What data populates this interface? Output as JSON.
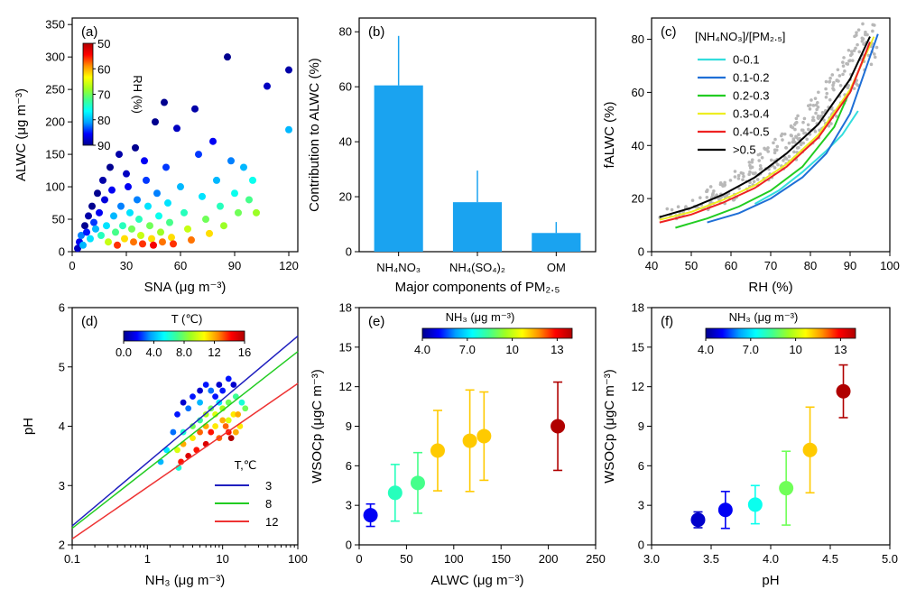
{
  "colors": {
    "bar": "#1aa3f0",
    "scatter_grey": "#b8b8b8",
    "ratio_lines": [
      "#33dddd",
      "#1f6fd6",
      "#22cc22",
      "#eeee22",
      "#ee2222",
      "#000000"
    ],
    "t_lines": [
      "#1f1fbf",
      "#22cc22",
      "#ee3333"
    ],
    "colormap": [
      "#00008f",
      "#0000ff",
      "#00a0ff",
      "#00ffff",
      "#40ff90",
      "#a0ff20",
      "#ffff00",
      "#ff9000",
      "#ff0000",
      "#b00000"
    ]
  },
  "chart_data": [
    {
      "panel": "(a)",
      "type": "scatter",
      "xlabel": "SNA (μg m⁻³)",
      "ylabel": "ALWC (μg m⁻³)",
      "xlim": [
        0,
        125
      ],
      "ylim": [
        0,
        360
      ],
      "xticks": [
        "0",
        "30",
        "60",
        "90",
        "120"
      ],
      "yticks": [
        "0",
        "50",
        "100",
        "150",
        "200",
        "250",
        "300",
        "350"
      ],
      "colorbar": {
        "title": "RH (%)",
        "ticks": [
          "50",
          "60",
          "70",
          "80",
          "90"
        ],
        "range": [
          50,
          90
        ],
        "reversed": true
      },
      "points": [
        [
          3,
          5,
          88
        ],
        [
          4,
          15,
          86
        ],
        [
          5,
          25,
          82
        ],
        [
          6,
          10,
          80
        ],
        [
          7,
          40,
          90
        ],
        [
          8,
          30,
          85
        ],
        [
          9,
          55,
          89
        ],
        [
          10,
          20,
          78
        ],
        [
          11,
          70,
          90
        ],
        [
          12,
          45,
          84
        ],
        [
          13,
          35,
          80
        ],
        [
          14,
          90,
          90
        ],
        [
          15,
          60,
          86
        ],
        [
          16,
          25,
          74
        ],
        [
          17,
          110,
          89
        ],
        [
          18,
          80,
          87
        ],
        [
          19,
          40,
          78
        ],
        [
          20,
          15,
          66
        ],
        [
          21,
          130,
          90
        ],
        [
          22,
          95,
          86
        ],
        [
          23,
          55,
          80
        ],
        [
          24,
          30,
          72
        ],
        [
          25,
          10,
          56
        ],
        [
          26,
          150,
          89
        ],
        [
          27,
          70,
          82
        ],
        [
          28,
          40,
          74
        ],
        [
          29,
          20,
          62
        ],
        [
          30,
          120,
          88
        ],
        [
          31,
          100,
          86
        ],
        [
          32,
          60,
          78
        ],
        [
          33,
          35,
          70
        ],
        [
          34,
          15,
          58
        ],
        [
          35,
          160,
          90
        ],
        [
          36,
          80,
          82
        ],
        [
          37,
          50,
          74
        ],
        [
          38,
          25,
          66
        ],
        [
          39,
          12,
          56
        ],
        [
          40,
          140,
          86
        ],
        [
          41,
          110,
          84
        ],
        [
          42,
          70,
          78
        ],
        [
          43,
          40,
          70
        ],
        [
          44,
          20,
          62
        ],
        [
          45,
          10,
          54
        ],
        [
          46,
          200,
          90
        ],
        [
          47,
          90,
          82
        ],
        [
          48,
          55,
          76
        ],
        [
          49,
          30,
          68
        ],
        [
          50,
          15,
          58
        ],
        [
          51,
          230,
          90
        ],
        [
          52,
          130,
          84
        ],
        [
          53,
          75,
          78
        ],
        [
          54,
          45,
          72
        ],
        [
          55,
          22,
          62
        ],
        [
          56,
          12,
          56
        ],
        [
          58,
          190,
          88
        ],
        [
          60,
          100,
          80
        ],
        [
          62,
          60,
          74
        ],
        [
          64,
          35,
          66
        ],
        [
          66,
          18,
          58
        ],
        [
          68,
          220,
          89
        ],
        [
          70,
          150,
          84
        ],
        [
          72,
          85,
          78
        ],
        [
          74,
          50,
          70
        ],
        [
          76,
          28,
          62
        ],
        [
          78,
          170,
          86
        ],
        [
          80,
          110,
          80
        ],
        [
          82,
          70,
          74
        ],
        [
          84,
          40,
          68
        ],
        [
          86,
          300,
          90
        ],
        [
          88,
          140,
          82
        ],
        [
          90,
          90,
          76
        ],
        [
          92,
          60,
          70
        ],
        [
          95,
          130,
          80
        ],
        [
          98,
          80,
          72
        ],
        [
          100,
          110,
          76
        ],
        [
          102,
          60,
          68
        ],
        [
          108,
          255,
          88
        ],
        [
          120,
          280,
          89
        ],
        [
          120,
          188,
          80
        ]
      ]
    },
    {
      "panel": "(b)",
      "type": "bar",
      "xlabel": "Major components of PM₂.₅",
      "ylabel": "Contribution to ALWC (%)",
      "categories": [
        "NH₄NO₃",
        "NH₄(SO₄)₂",
        "OM"
      ],
      "values": [
        60.5,
        18,
        6.8
      ],
      "errors": [
        18,
        11.5,
        4
      ],
      "ylim": [
        0,
        85
      ],
      "yticks": [
        "0",
        "20",
        "40",
        "60",
        "80"
      ]
    },
    {
      "panel": "(c)",
      "type": "line",
      "xlabel": "RH (%)",
      "ylabel": "fALWC (%)",
      "xlim": [
        40,
        100
      ],
      "ylim": [
        0,
        88
      ],
      "xticks": [
        "40",
        "50",
        "60",
        "70",
        "80",
        "90",
        "100"
      ],
      "yticks": [
        "0",
        "20",
        "40",
        "60",
        "80"
      ],
      "legend_title": "[NH₄NO₃]/[PM₂.₅]",
      "series": [
        {
          "name": "0-0.1",
          "x": [
            66,
            72,
            78,
            84,
            88,
            92
          ],
          "y": [
            18,
            23,
            30,
            38,
            44,
            53
          ]
        },
        {
          "name": "0.1-0.2",
          "x": [
            54,
            62,
            70,
            78,
            84,
            90,
            97
          ],
          "y": [
            11,
            14.5,
            20,
            28,
            37,
            52,
            82
          ]
        },
        {
          "name": "0.2-0.3",
          "x": [
            46,
            54,
            62,
            70,
            78,
            86,
            95
          ],
          "y": [
            9,
            12.5,
            17,
            23,
            32,
            47,
            78
          ]
        },
        {
          "name": "0.3-0.4",
          "x": [
            42,
            50,
            58,
            66,
            74,
            82,
            90,
            96
          ],
          "y": [
            12,
            15,
            19.5,
            25,
            33,
            44,
            61,
            81
          ]
        },
        {
          "name": "0.4-0.5",
          "x": [
            42,
            50,
            58,
            66,
            74,
            82,
            90,
            95
          ],
          "y": [
            11,
            14,
            18.5,
            24,
            32,
            43,
            60,
            79
          ]
        },
        {
          "name": ">0.5",
          "x": [
            42,
            50,
            58,
            66,
            74,
            82,
            90,
            95
          ],
          "y": [
            13,
            16.5,
            21.5,
            28,
            37,
            48,
            65,
            81
          ]
        }
      ]
    },
    {
      "panel": "(d)",
      "type": "scatter",
      "xlabel": "NH₃ (μg m⁻³)",
      "ylabel": "pH",
      "xscale": "log",
      "xlim": [
        0.1,
        100
      ],
      "ylim": [
        2,
        6
      ],
      "xticks": [
        "0.1",
        "1",
        "10",
        "100"
      ],
      "yticks": [
        "2",
        "3",
        "4",
        "5",
        "6"
      ],
      "colorbar": {
        "title": "T (℃)",
        "ticks": [
          "0.0",
          "4.0",
          "8.0",
          "12",
          "16"
        ],
        "range": [
          0,
          16
        ]
      },
      "legend_title": "T,℃",
      "lines": [
        {
          "name": "3",
          "x": [
            0.1,
            100
          ],
          "y": [
            2.32,
            5.52
          ]
        },
        {
          "name": "8",
          "x": [
            0.1,
            100
          ],
          "y": [
            2.28,
            5.26
          ]
        },
        {
          "name": "12",
          "x": [
            0.1,
            100
          ],
          "y": [
            2.1,
            4.72
          ]
        }
      ],
      "points": [
        [
          2.5,
          4.2,
          2
        ],
        [
          3,
          4.4,
          1
        ],
        [
          3.5,
          4.3,
          3
        ],
        [
          4,
          4.5,
          2
        ],
        [
          5,
          4.6,
          1
        ],
        [
          6,
          4.7,
          2
        ],
        [
          7,
          4.6,
          3
        ],
        [
          8,
          4.5,
          2
        ],
        [
          9,
          4.7,
          1
        ],
        [
          10,
          4.6,
          2
        ],
        [
          12,
          4.8,
          2
        ],
        [
          14,
          4.7,
          1
        ],
        [
          3,
          3.9,
          6
        ],
        [
          4,
          4.0,
          8
        ],
        [
          5,
          4.1,
          7
        ],
        [
          6,
          4.2,
          9
        ],
        [
          7,
          4.3,
          8
        ],
        [
          8,
          4.2,
          10
        ],
        [
          10,
          4.3,
          9
        ],
        [
          12,
          4.4,
          8
        ],
        [
          15,
          4.5,
          7
        ],
        [
          18,
          4.4,
          6
        ],
        [
          2.5,
          3.6,
          10
        ],
        [
          3,
          3.7,
          12
        ],
        [
          4,
          3.8,
          11
        ],
        [
          5,
          3.9,
          13
        ],
        [
          6,
          4.0,
          12
        ],
        [
          7,
          3.9,
          14
        ],
        [
          8,
          4.0,
          11
        ],
        [
          10,
          4.1,
          12
        ],
        [
          12,
          4.1,
          10
        ],
        [
          14,
          4.2,
          11
        ],
        [
          16,
          4.2,
          12
        ],
        [
          20,
          4.3,
          8
        ],
        [
          2.8,
          3.4,
          14
        ],
        [
          3.5,
          3.5,
          15
        ],
        [
          4.5,
          3.6,
          14
        ],
        [
          6,
          3.7,
          15
        ],
        [
          9,
          3.8,
          13
        ],
        [
          12,
          3.9,
          14
        ],
        [
          1.5,
          3.4,
          4
        ],
        [
          1.8,
          3.6,
          5
        ],
        [
          2.2,
          3.9,
          3
        ],
        [
          2.6,
          3.3,
          6
        ],
        [
          13,
          3.8,
          16
        ],
        [
          15,
          3.9,
          12
        ],
        [
          17,
          4.0,
          11
        ],
        [
          5,
          4.4,
          4
        ],
        [
          9,
          4.4,
          5
        ],
        [
          11,
          4.0,
          13
        ]
      ]
    },
    {
      "panel": "(e)",
      "type": "scatter",
      "xlabel": "ALWC (μg m⁻³)",
      "ylabel": "WSOCp (μgC m⁻³)",
      "xlim": [
        0,
        250
      ],
      "ylim": [
        0,
        18
      ],
      "xticks": [
        "0",
        "50",
        "100",
        "150",
        "200",
        "250"
      ],
      "yticks": [
        "0",
        "3",
        "6",
        "9",
        "12",
        "15",
        "18"
      ],
      "colorbar": {
        "title": "NH₃ (μg m⁻³)",
        "ticks": [
          "4.0",
          "7.0",
          "10",
          "13"
        ],
        "range": [
          4,
          14
        ]
      },
      "points": [
        {
          "x": 12,
          "y": 2.25,
          "err": 0.85,
          "c": 5.0
        },
        {
          "x": 38,
          "y": 3.95,
          "err": 2.15,
          "c": 8.0
        },
        {
          "x": 62,
          "y": 4.7,
          "err": 2.3,
          "c": 8.5
        },
        {
          "x": 83,
          "y": 7.15,
          "err": 3.05,
          "c": 11.2
        },
        {
          "x": 117,
          "y": 7.9,
          "err": 3.85,
          "c": 11.2
        },
        {
          "x": 132,
          "y": 8.25,
          "err": 3.35,
          "c": 11.2
        },
        {
          "x": 210,
          "y": 9.0,
          "err": 3.35,
          "c": 14
        }
      ]
    },
    {
      "panel": "(f)",
      "type": "scatter",
      "xlabel": "pH",
      "ylabel": "WSOCp (μgC m⁻³)",
      "xlim": [
        3.0,
        5.0
      ],
      "ylim": [
        0,
        18
      ],
      "xticks": [
        "3.0",
        "3.5",
        "4.0",
        "4.5",
        "5.0"
      ],
      "yticks": [
        "0",
        "3",
        "6",
        "9",
        "12",
        "15",
        "18"
      ],
      "colorbar": {
        "title": "NH₃ (μg m⁻³)",
        "ticks": [
          "4.0",
          "7.0",
          "10",
          "13"
        ],
        "range": [
          4,
          14
        ]
      },
      "points": [
        {
          "x": 3.39,
          "y": 1.9,
          "err": 0.6,
          "c": 4.6
        },
        {
          "x": 3.62,
          "y": 2.65,
          "err": 1.4,
          "c": 5.0
        },
        {
          "x": 3.87,
          "y": 3.05,
          "err": 1.45,
          "c": 7.5
        },
        {
          "x": 4.13,
          "y": 4.3,
          "err": 2.8,
          "c": 9.0
        },
        {
          "x": 4.33,
          "y": 7.2,
          "err": 3.25,
          "c": 11.2
        },
        {
          "x": 4.61,
          "y": 11.65,
          "err": 2.0,
          "c": 14
        }
      ]
    }
  ]
}
